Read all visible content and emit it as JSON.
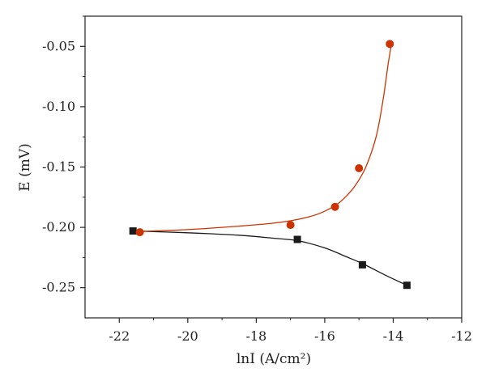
{
  "chart_data": {
    "type": "scatter",
    "title": "",
    "xlabel": "lnI (A/cm²)",
    "ylabel": "E (mV)",
    "xlim": [
      -23,
      -12
    ],
    "ylim": [
      -0.275,
      -0.025
    ],
    "x_ticks": [
      -22,
      -20,
      -18,
      -16,
      -14,
      -12
    ],
    "x_tick_labels": [
      "-22",
      "-20",
      "-18",
      "-16",
      "-14",
      "-12"
    ],
    "y_ticks": [
      -0.25,
      -0.2,
      -0.15,
      -0.1,
      -0.05
    ],
    "y_tick_labels": [
      "-0.25",
      "-0.20",
      "-0.15",
      "-0.10",
      "-0.05"
    ],
    "grid": false,
    "legend": "none",
    "series": [
      {
        "marker": "square",
        "color": "#1a1a1a",
        "x": [
          -21.6,
          -16.8,
          -14.9,
          -13.6
        ],
        "y": [
          -0.203,
          -0.21,
          -0.231,
          -0.248
        ],
        "fit_line": [
          [
            -21.6,
            -0.203
          ],
          [
            -20.0,
            -0.2045
          ],
          [
            -18.5,
            -0.2065
          ],
          [
            -17.5,
            -0.209
          ],
          [
            -16.8,
            -0.211
          ],
          [
            -16.0,
            -0.217
          ],
          [
            -15.4,
            -0.224
          ],
          [
            -14.9,
            -0.23
          ],
          [
            -14.2,
            -0.24
          ],
          [
            -13.6,
            -0.248
          ]
        ]
      },
      {
        "marker": "circle",
        "color": "#cc3300",
        "x": [
          -21.4,
          -17.0,
          -15.7,
          -15.0,
          -14.1
        ],
        "y": [
          -0.204,
          -0.198,
          -0.183,
          -0.151,
          -0.048
        ],
        "fit_line": [
          [
            -21.6,
            -0.2035
          ],
          [
            -20.5,
            -0.2025
          ],
          [
            -19.5,
            -0.201
          ],
          [
            -18.5,
            -0.199
          ],
          [
            -17.5,
            -0.1965
          ],
          [
            -16.8,
            -0.1935
          ],
          [
            -16.2,
            -0.189
          ],
          [
            -15.7,
            -0.182
          ],
          [
            -15.4,
            -0.175
          ],
          [
            -15.1,
            -0.165
          ],
          [
            -14.8,
            -0.15
          ],
          [
            -14.5,
            -0.125
          ],
          [
            -14.3,
            -0.095
          ],
          [
            -14.15,
            -0.065
          ],
          [
            -14.05,
            -0.048
          ]
        ]
      }
    ]
  }
}
